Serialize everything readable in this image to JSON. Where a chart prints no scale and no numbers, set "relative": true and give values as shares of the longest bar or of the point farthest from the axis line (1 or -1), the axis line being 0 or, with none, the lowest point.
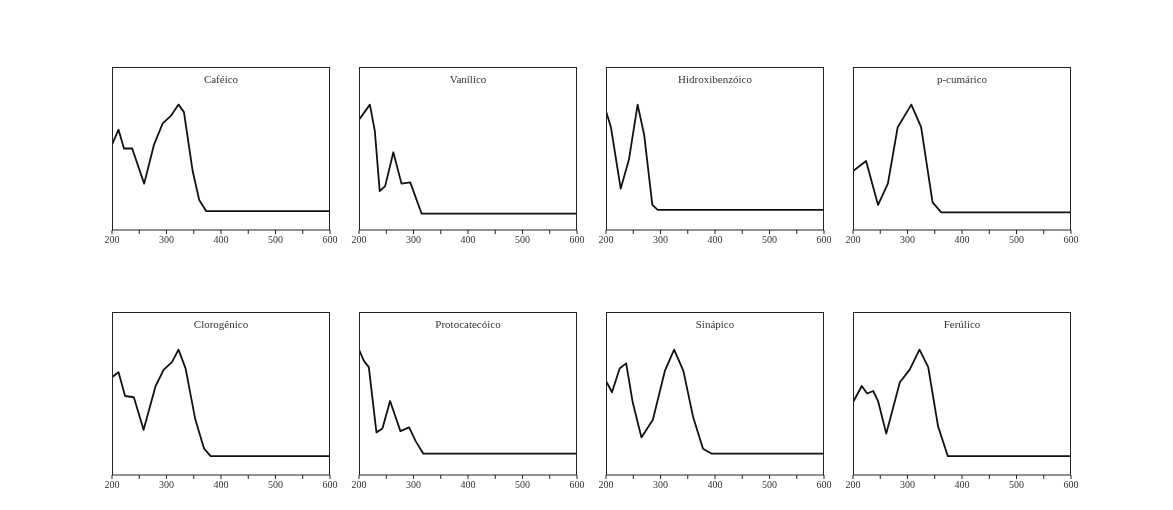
{
  "chart_data": [
    {
      "type": "line",
      "title": "Caféico",
      "relative": true,
      "color": "#111111",
      "grid": false,
      "xlim": [
        200,
        600
      ],
      "xticks": [
        200,
        {
          "value": 250,
          "label": null
        },
        300,
        {
          "value": 350,
          "label": null
        },
        400,
        {
          "value": 450,
          "label": null
        },
        500,
        {
          "value": 550,
          "label": null
        },
        600
      ],
      "x": [
        200,
        212,
        222,
        237,
        259,
        277,
        293,
        308,
        322,
        332,
        348,
        360,
        373,
        600
      ],
      "values": [
        0.68,
        0.8,
        0.65,
        0.65,
        0.37,
        0.68,
        0.85,
        0.91,
        1.0,
        0.94,
        0.47,
        0.24,
        0.15,
        0.15
      ]
    },
    {
      "type": "line",
      "title": "Vanílico",
      "relative": true,
      "color": "#111111",
      "grid": false,
      "xlim": [
        200,
        600
      ],
      "xticks": [
        200,
        {
          "value": 250,
          "label": null
        },
        300,
        {
          "value": 350,
          "label": null
        },
        400,
        {
          "value": 450,
          "label": null
        },
        500,
        {
          "value": 550,
          "label": null
        },
        600
      ],
      "x": [
        200,
        210,
        220,
        229,
        238,
        248,
        263,
        278,
        294,
        315,
        600
      ],
      "values": [
        0.88,
        0.94,
        1.0,
        0.79,
        0.31,
        0.35,
        0.62,
        0.37,
        0.38,
        0.13,
        0.13
      ]
    },
    {
      "type": "line",
      "title": "Hidroxibenzóico",
      "relative": true,
      "color": "#111111",
      "grid": false,
      "xlim": [
        200,
        600
      ],
      "xticks": [
        200,
        {
          "value": 250,
          "label": null
        },
        300,
        {
          "value": 350,
          "label": null
        },
        400,
        {
          "value": 450,
          "label": null
        },
        500,
        {
          "value": 550,
          "label": null
        },
        600
      ],
      "x": [
        200,
        209,
        227,
        242,
        258,
        270,
        285,
        295,
        600
      ],
      "values": [
        0.95,
        0.82,
        0.33,
        0.56,
        1.0,
        0.76,
        0.2,
        0.16,
        0.16
      ]
    },
    {
      "type": "line",
      "title": "p-cumárico",
      "relative": true,
      "color": "#111111",
      "grid": false,
      "xlim": [
        200,
        600
      ],
      "xticks": [
        200,
        {
          "value": 250,
          "label": null
        },
        300,
        {
          "value": 350,
          "label": null
        },
        400,
        {
          "value": 450,
          "label": null
        },
        500,
        {
          "value": 550,
          "label": null
        },
        600
      ],
      "x": [
        200,
        224,
        246,
        264,
        282,
        307,
        325,
        346,
        362,
        600
      ],
      "values": [
        0.47,
        0.55,
        0.2,
        0.37,
        0.82,
        1.0,
        0.82,
        0.22,
        0.14,
        0.14
      ]
    },
    {
      "type": "line",
      "title": "Clorogênico",
      "relative": true,
      "color": "#111111",
      "grid": false,
      "xlim": [
        200,
        600
      ],
      "xticks": [
        200,
        {
          "value": 250,
          "label": null
        },
        300,
        {
          "value": 350,
          "label": null
        },
        400,
        {
          "value": 450,
          "label": null
        },
        500,
        {
          "value": 550,
          "label": null
        },
        600
      ],
      "x": [
        200,
        212,
        224,
        240,
        258,
        280,
        295,
        310,
        322,
        335,
        353,
        369,
        381,
        600
      ],
      "values": [
        0.78,
        0.82,
        0.63,
        0.62,
        0.36,
        0.71,
        0.84,
        0.9,
        1.0,
        0.85,
        0.44,
        0.21,
        0.15,
        0.15
      ]
    },
    {
      "type": "line",
      "title": "Protocatecóico",
      "relative": true,
      "color": "#111111",
      "grid": false,
      "xlim": [
        200,
        600
      ],
      "xticks": [
        200,
        {
          "value": 250,
          "label": null
        },
        300,
        {
          "value": 350,
          "label": null
        },
        400,
        {
          "value": 450,
          "label": null
        },
        500,
        {
          "value": 550,
          "label": null
        },
        600
      ],
      "x": [
        200,
        209,
        218,
        232,
        243,
        257,
        276,
        292,
        304,
        318,
        600
      ],
      "values": [
        1.0,
        0.91,
        0.86,
        0.34,
        0.37,
        0.59,
        0.35,
        0.38,
        0.27,
        0.17,
        0.17
      ]
    },
    {
      "type": "line",
      "title": "Sinápico",
      "relative": true,
      "color": "#111111",
      "grid": false,
      "xlim": [
        200,
        600
      ],
      "xticks": [
        200,
        {
          "value": 250,
          "label": null
        },
        300,
        {
          "value": 350,
          "label": null
        },
        400,
        {
          "value": 450,
          "label": null
        },
        500,
        {
          "value": 550,
          "label": null
        },
        600
      ],
      "x": [
        200,
        211,
        225,
        237,
        249,
        265,
        286,
        308,
        325,
        342,
        360,
        378,
        394,
        600
      ],
      "values": [
        0.75,
        0.66,
        0.85,
        0.89,
        0.58,
        0.3,
        0.44,
        0.83,
        1.0,
        0.83,
        0.46,
        0.21,
        0.17,
        0.17
      ]
    },
    {
      "type": "line",
      "title": "Ferúlico",
      "relative": true,
      "color": "#111111",
      "grid": false,
      "xlim": [
        200,
        600
      ],
      "xticks": [
        200,
        {
          "value": 250,
          "label": null
        },
        300,
        {
          "value": 350,
          "label": null
        },
        400,
        {
          "value": 450,
          "label": null
        },
        500,
        {
          "value": 550,
          "label": null
        },
        600
      ],
      "x": [
        200,
        216,
        226,
        237,
        246,
        261,
        286,
        304,
        322,
        338,
        356,
        374,
        600
      ],
      "values": [
        0.58,
        0.71,
        0.65,
        0.67,
        0.59,
        0.33,
        0.74,
        0.84,
        1.0,
        0.86,
        0.39,
        0.15,
        0.15
      ]
    }
  ]
}
